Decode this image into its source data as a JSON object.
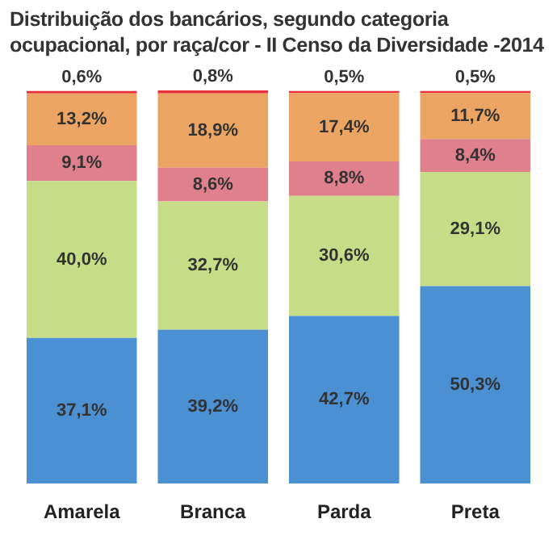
{
  "chart_data": {
    "type": "bar",
    "title": "Distribuição dos bancários, segundo categoria ocupacional, por raça/cor - II Censo da Diversidade -2014",
    "categories": [
      "Amarela",
      "Branca",
      "Parda",
      "Preta"
    ],
    "stacked": true,
    "ylim": [
      0,
      101
    ],
    "tick_labels": "x",
    "legend": false,
    "grid": false,
    "series": [
      {
        "color": "#4a90d2",
        "values": [
          37.1,
          39.2,
          42.7,
          50.3
        ],
        "value_labels": [
          "37,1%",
          "39,2%",
          "42,7%",
          "50,3%"
        ]
      },
      {
        "color": "#c6dc86",
        "values": [
          40.0,
          32.7,
          30.6,
          29.1
        ],
        "value_labels": [
          "40,0%",
          "32,7%",
          "30,6%",
          "29,1%"
        ]
      },
      {
        "color": "#e0808d",
        "values": [
          9.1,
          8.6,
          8.8,
          8.4
        ],
        "value_labels": [
          "9,1%",
          "8,6%",
          "8,8%",
          "8,4%"
        ]
      },
      {
        "color": "#eca462",
        "values": [
          13.2,
          18.9,
          17.4,
          11.7
        ],
        "value_labels": [
          "13,2%",
          "18,9%",
          "17,4%",
          "11,7%"
        ]
      },
      {
        "color": "#e8303a",
        "values": [
          0.6,
          0.8,
          0.5,
          0.5
        ],
        "value_labels": [
          "0,6%",
          "0,8%",
          "0,5%",
          "0,5%"
        ]
      }
    ]
  }
}
